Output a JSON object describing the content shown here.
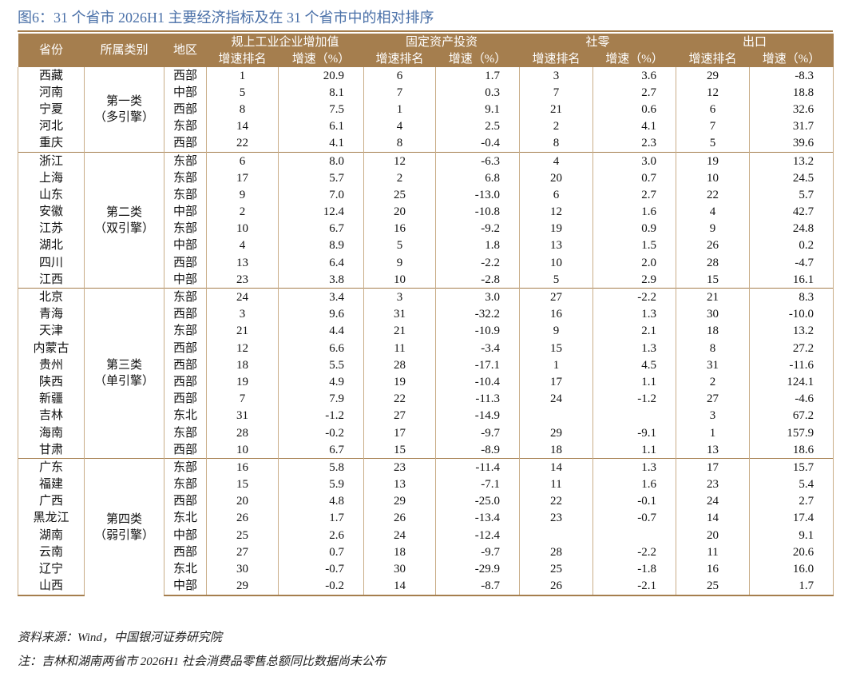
{
  "header": {
    "title": "图6：31 个省市 2026H1 主要经济指标及在 31 个省市中的相对排序"
  },
  "table": {
    "columns": [
      "省份",
      "所属类别",
      "地区"
    ],
    "indicators": [
      {
        "name": "规上工业企业增加值",
        "sub": [
          "增速排名",
          "增速（%）"
        ]
      },
      {
        "name": "固定资产投资",
        "sub": [
          "增速排名",
          "增速（%）"
        ]
      },
      {
        "name": "社零",
        "sub": [
          "增速排名",
          "增速（%）"
        ]
      },
      {
        "name": "出口",
        "sub": [
          "增速排名",
          "增速（%）"
        ]
      }
    ],
    "groups": [
      {
        "category": "第一类",
        "engine": "（多引擎）",
        "rows": [
          [
            "西藏",
            "西部",
            1,
            "20.9",
            6,
            "1.7",
            3,
            "3.6",
            29,
            "-8.3"
          ],
          [
            "河南",
            "中部",
            5,
            "8.1",
            7,
            "0.3",
            7,
            "2.7",
            12,
            "18.8"
          ],
          [
            "宁夏",
            "西部",
            8,
            "7.5",
            1,
            "9.1",
            21,
            "0.6",
            6,
            "32.6"
          ],
          [
            "河北",
            "东部",
            14,
            "6.1",
            4,
            "2.5",
            2,
            "4.1",
            7,
            "31.7"
          ],
          [
            "重庆",
            "西部",
            22,
            "4.1",
            8,
            "-0.4",
            8,
            "2.3",
            5,
            "39.6"
          ]
        ]
      },
      {
        "category": "第二类",
        "engine": "（双引擎）",
        "rows": [
          [
            "浙江",
            "东部",
            6,
            "8.0",
            12,
            "-6.3",
            4,
            "3.0",
            19,
            "13.2"
          ],
          [
            "上海",
            "东部",
            17,
            "5.7",
            2,
            "6.8",
            20,
            "0.7",
            10,
            "24.5"
          ],
          [
            "山东",
            "东部",
            9,
            "7.0",
            25,
            "-13.0",
            6,
            "2.7",
            22,
            "5.7"
          ],
          [
            "安徽",
            "中部",
            2,
            "12.4",
            20,
            "-10.8",
            12,
            "1.6",
            4,
            "42.7"
          ],
          [
            "江苏",
            "东部",
            10,
            "6.7",
            16,
            "-9.2",
            19,
            "0.9",
            9,
            "24.8"
          ],
          [
            "湖北",
            "中部",
            4,
            "8.9",
            5,
            "1.8",
            13,
            "1.5",
            26,
            "0.2"
          ],
          [
            "四川",
            "西部",
            13,
            "6.4",
            9,
            "-2.2",
            10,
            "2.0",
            28,
            "-4.7"
          ],
          [
            "江西",
            "中部",
            23,
            "3.8",
            10,
            "-2.8",
            5,
            "2.9",
            15,
            "16.1"
          ]
        ]
      },
      {
        "category": "第三类",
        "engine": "（单引擎）",
        "rows": [
          [
            "北京",
            "东部",
            24,
            "3.4",
            3,
            "3.0",
            27,
            "-2.2",
            21,
            "8.3"
          ],
          [
            "青海",
            "西部",
            3,
            "9.6",
            31,
            "-32.2",
            16,
            "1.3",
            30,
            "-10.0"
          ],
          [
            "天津",
            "东部",
            21,
            "4.4",
            21,
            "-10.9",
            9,
            "2.1",
            18,
            "13.2"
          ],
          [
            "内蒙古",
            "西部",
            12,
            "6.6",
            11,
            "-3.4",
            15,
            "1.3",
            8,
            "27.2"
          ],
          [
            "贵州",
            "西部",
            18,
            "5.5",
            28,
            "-17.1",
            1,
            "4.5",
            31,
            "-11.6"
          ],
          [
            "陕西",
            "西部",
            19,
            "4.9",
            19,
            "-10.4",
            17,
            "1.1",
            2,
            "124.1"
          ],
          [
            "新疆",
            "西部",
            7,
            "7.9",
            22,
            "-11.3",
            24,
            "-1.2",
            27,
            "-4.6"
          ],
          [
            "吉林",
            "东北",
            31,
            "-1.2",
            27,
            "-14.9",
            null,
            null,
            3,
            "67.2"
          ],
          [
            "海南",
            "东部",
            28,
            "-0.2",
            17,
            "-9.7",
            29,
            "-9.1",
            1,
            "157.9"
          ],
          [
            "甘肃",
            "西部",
            10,
            "6.7",
            15,
            "-8.9",
            18,
            "1.1",
            13,
            "18.6"
          ]
        ]
      },
      {
        "category": "第四类",
        "engine": "（弱引擎）",
        "rows": [
          [
            "广东",
            "东部",
            16,
            "5.8",
            23,
            "-11.4",
            14,
            "1.3",
            17,
            "15.7"
          ],
          [
            "福建",
            "东部",
            15,
            "5.9",
            13,
            "-7.1",
            11,
            "1.6",
            23,
            "5.4"
          ],
          [
            "广西",
            "西部",
            20,
            "4.8",
            29,
            "-25.0",
            22,
            "-0.1",
            24,
            "2.7"
          ],
          [
            "黑龙江",
            "东北",
            26,
            "1.7",
            26,
            "-13.4",
            23,
            "-0.7",
            14,
            "17.4"
          ],
          [
            "湖南",
            "中部",
            25,
            "2.6",
            24,
            "-12.4",
            null,
            null,
            20,
            "9.1"
          ],
          [
            "云南",
            "西部",
            27,
            "0.7",
            18,
            "-9.7",
            28,
            "-2.2",
            11,
            "20.6"
          ],
          [
            "辽宁",
            "东北",
            30,
            "-0.7",
            30,
            "-29.9",
            25,
            "-1.8",
            16,
            "16.0"
          ],
          [
            "山西",
            "中部",
            29,
            "-0.2",
            14,
            "-8.7",
            26,
            "-2.1",
            25,
            "1.7"
          ]
        ]
      }
    ]
  },
  "footer": {
    "source": "资料来源：Wind，中国银河证券研究院",
    "note": "注：吉林和湖南两省市 2026H1 社会消费品零售总额同比数据尚未公布"
  }
}
